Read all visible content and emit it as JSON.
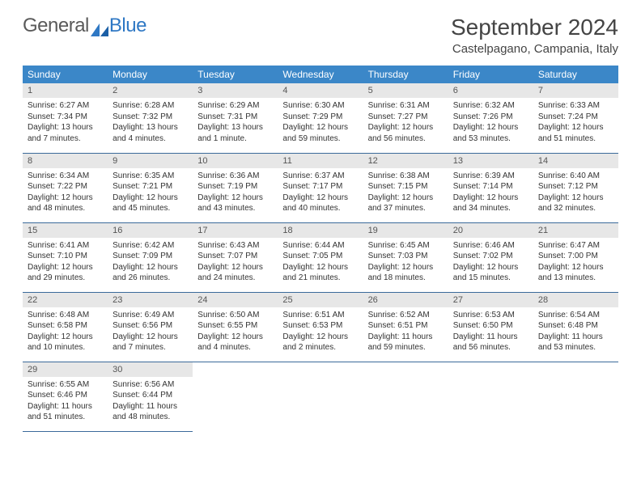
{
  "logo": {
    "part1": "General",
    "part2": "Blue"
  },
  "title": "September 2024",
  "location": "Castelpagano, Campania, Italy",
  "colors": {
    "header_bg": "#3b87c8",
    "header_text": "#ffffff",
    "daynum_bg": "#e7e7e7",
    "row_border": "#3b6a9a",
    "logo_gray": "#5a5a5a",
    "logo_blue": "#2f78c4"
  },
  "weekdays": [
    "Sunday",
    "Monday",
    "Tuesday",
    "Wednesday",
    "Thursday",
    "Friday",
    "Saturday"
  ],
  "weeks": [
    [
      {
        "n": "1",
        "sr": "6:27 AM",
        "ss": "7:34 PM",
        "dl": "13 hours and 7 minutes."
      },
      {
        "n": "2",
        "sr": "6:28 AM",
        "ss": "7:32 PM",
        "dl": "13 hours and 4 minutes."
      },
      {
        "n": "3",
        "sr": "6:29 AM",
        "ss": "7:31 PM",
        "dl": "13 hours and 1 minute."
      },
      {
        "n": "4",
        "sr": "6:30 AM",
        "ss": "7:29 PM",
        "dl": "12 hours and 59 minutes."
      },
      {
        "n": "5",
        "sr": "6:31 AM",
        "ss": "7:27 PM",
        "dl": "12 hours and 56 minutes."
      },
      {
        "n": "6",
        "sr": "6:32 AM",
        "ss": "7:26 PM",
        "dl": "12 hours and 53 minutes."
      },
      {
        "n": "7",
        "sr": "6:33 AM",
        "ss": "7:24 PM",
        "dl": "12 hours and 51 minutes."
      }
    ],
    [
      {
        "n": "8",
        "sr": "6:34 AM",
        "ss": "7:22 PM",
        "dl": "12 hours and 48 minutes."
      },
      {
        "n": "9",
        "sr": "6:35 AM",
        "ss": "7:21 PM",
        "dl": "12 hours and 45 minutes."
      },
      {
        "n": "10",
        "sr": "6:36 AM",
        "ss": "7:19 PM",
        "dl": "12 hours and 43 minutes."
      },
      {
        "n": "11",
        "sr": "6:37 AM",
        "ss": "7:17 PM",
        "dl": "12 hours and 40 minutes."
      },
      {
        "n": "12",
        "sr": "6:38 AM",
        "ss": "7:15 PM",
        "dl": "12 hours and 37 minutes."
      },
      {
        "n": "13",
        "sr": "6:39 AM",
        "ss": "7:14 PM",
        "dl": "12 hours and 34 minutes."
      },
      {
        "n": "14",
        "sr": "6:40 AM",
        "ss": "7:12 PM",
        "dl": "12 hours and 32 minutes."
      }
    ],
    [
      {
        "n": "15",
        "sr": "6:41 AM",
        "ss": "7:10 PM",
        "dl": "12 hours and 29 minutes."
      },
      {
        "n": "16",
        "sr": "6:42 AM",
        "ss": "7:09 PM",
        "dl": "12 hours and 26 minutes."
      },
      {
        "n": "17",
        "sr": "6:43 AM",
        "ss": "7:07 PM",
        "dl": "12 hours and 24 minutes."
      },
      {
        "n": "18",
        "sr": "6:44 AM",
        "ss": "7:05 PM",
        "dl": "12 hours and 21 minutes."
      },
      {
        "n": "19",
        "sr": "6:45 AM",
        "ss": "7:03 PM",
        "dl": "12 hours and 18 minutes."
      },
      {
        "n": "20",
        "sr": "6:46 AM",
        "ss": "7:02 PM",
        "dl": "12 hours and 15 minutes."
      },
      {
        "n": "21",
        "sr": "6:47 AM",
        "ss": "7:00 PM",
        "dl": "12 hours and 13 minutes."
      }
    ],
    [
      {
        "n": "22",
        "sr": "6:48 AM",
        "ss": "6:58 PM",
        "dl": "12 hours and 10 minutes."
      },
      {
        "n": "23",
        "sr": "6:49 AM",
        "ss": "6:56 PM",
        "dl": "12 hours and 7 minutes."
      },
      {
        "n": "24",
        "sr": "6:50 AM",
        "ss": "6:55 PM",
        "dl": "12 hours and 4 minutes."
      },
      {
        "n": "25",
        "sr": "6:51 AM",
        "ss": "6:53 PM",
        "dl": "12 hours and 2 minutes."
      },
      {
        "n": "26",
        "sr": "6:52 AM",
        "ss": "6:51 PM",
        "dl": "11 hours and 59 minutes."
      },
      {
        "n": "27",
        "sr": "6:53 AM",
        "ss": "6:50 PM",
        "dl": "11 hours and 56 minutes."
      },
      {
        "n": "28",
        "sr": "6:54 AM",
        "ss": "6:48 PM",
        "dl": "11 hours and 53 minutes."
      }
    ],
    [
      {
        "n": "29",
        "sr": "6:55 AM",
        "ss": "6:46 PM",
        "dl": "11 hours and 51 minutes."
      },
      {
        "n": "30",
        "sr": "6:56 AM",
        "ss": "6:44 PM",
        "dl": "11 hours and 48 minutes."
      },
      null,
      null,
      null,
      null,
      null
    ]
  ],
  "labels": {
    "sunrise": "Sunrise: ",
    "sunset": "Sunset: ",
    "daylight": "Daylight: "
  }
}
